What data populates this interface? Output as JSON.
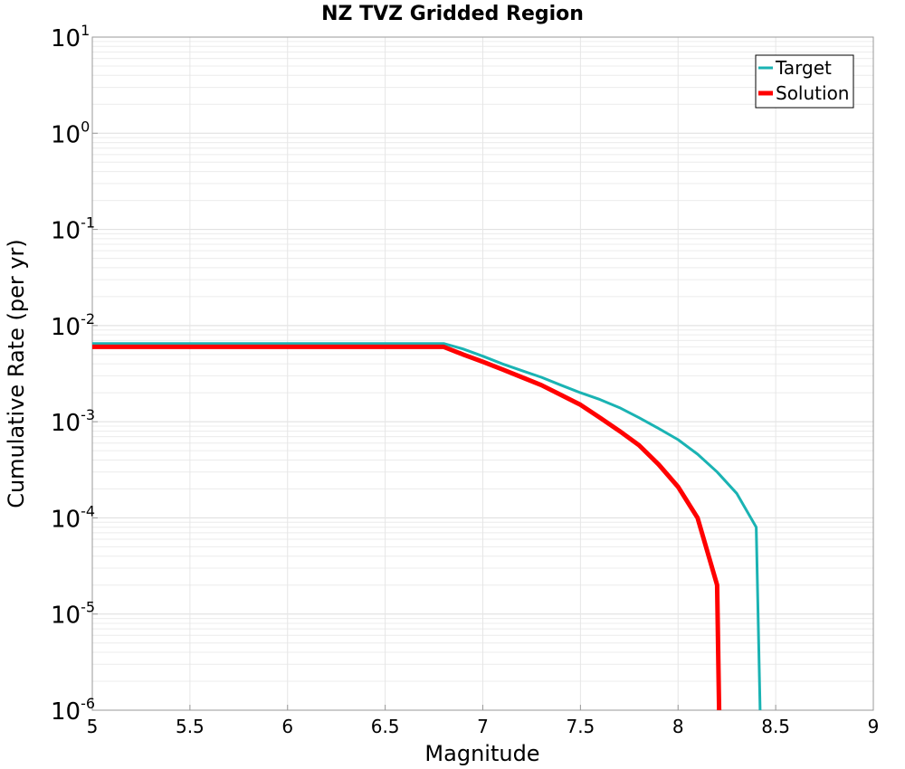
{
  "chart_data": {
    "type": "line",
    "title": "NZ TVZ Gridded Region",
    "xlabel": "Magnitude",
    "ylabel": "Cumulative Rate (per yr)",
    "xlim": [
      5,
      9
    ],
    "ylim": [
      1e-06,
      10
    ],
    "y_scale": "log",
    "grid": true,
    "legend_position": "top-right",
    "x_ticks": [
      "5",
      "5.5",
      "6",
      "6.5",
      "7",
      "7.5",
      "8",
      "8.5",
      "9"
    ],
    "y_ticks": [
      {
        "base": "10",
        "exp": "1"
      },
      {
        "base": "10",
        "exp": "0"
      },
      {
        "base": "10",
        "exp": "-1"
      },
      {
        "base": "10",
        "exp": "-2"
      },
      {
        "base": "10",
        "exp": "-3"
      },
      {
        "base": "10",
        "exp": "-4"
      },
      {
        "base": "10",
        "exp": "-5"
      },
      {
        "base": "10",
        "exp": "-6"
      }
    ],
    "series": [
      {
        "name": "Target",
        "color": "#1ab3b3",
        "x": [
          5.0,
          6.8,
          6.9,
          7.0,
          7.1,
          7.2,
          7.3,
          7.4,
          7.5,
          7.6,
          7.7,
          7.8,
          7.9,
          8.0,
          8.1,
          8.2,
          8.3,
          8.4,
          8.42
        ],
        "y": [
          0.0065,
          0.0065,
          0.0057,
          0.0048,
          0.004,
          0.0034,
          0.0029,
          0.0024,
          0.002,
          0.0017,
          0.0014,
          0.0011,
          0.00085,
          0.00065,
          0.00046,
          0.0003,
          0.00018,
          8e-05,
          1e-06
        ]
      },
      {
        "name": "Solution",
        "color": "#ff0000",
        "x": [
          5.0,
          6.8,
          6.9,
          7.0,
          7.1,
          7.2,
          7.3,
          7.4,
          7.5,
          7.6,
          7.7,
          7.8,
          7.9,
          8.0,
          8.1,
          8.2,
          8.21
        ],
        "y": [
          0.006,
          0.006,
          0.005,
          0.0042,
          0.0035,
          0.0029,
          0.0024,
          0.0019,
          0.0015,
          0.0011,
          0.0008,
          0.00057,
          0.00036,
          0.00021,
          0.0001,
          2e-05,
          1e-06
        ]
      }
    ]
  }
}
